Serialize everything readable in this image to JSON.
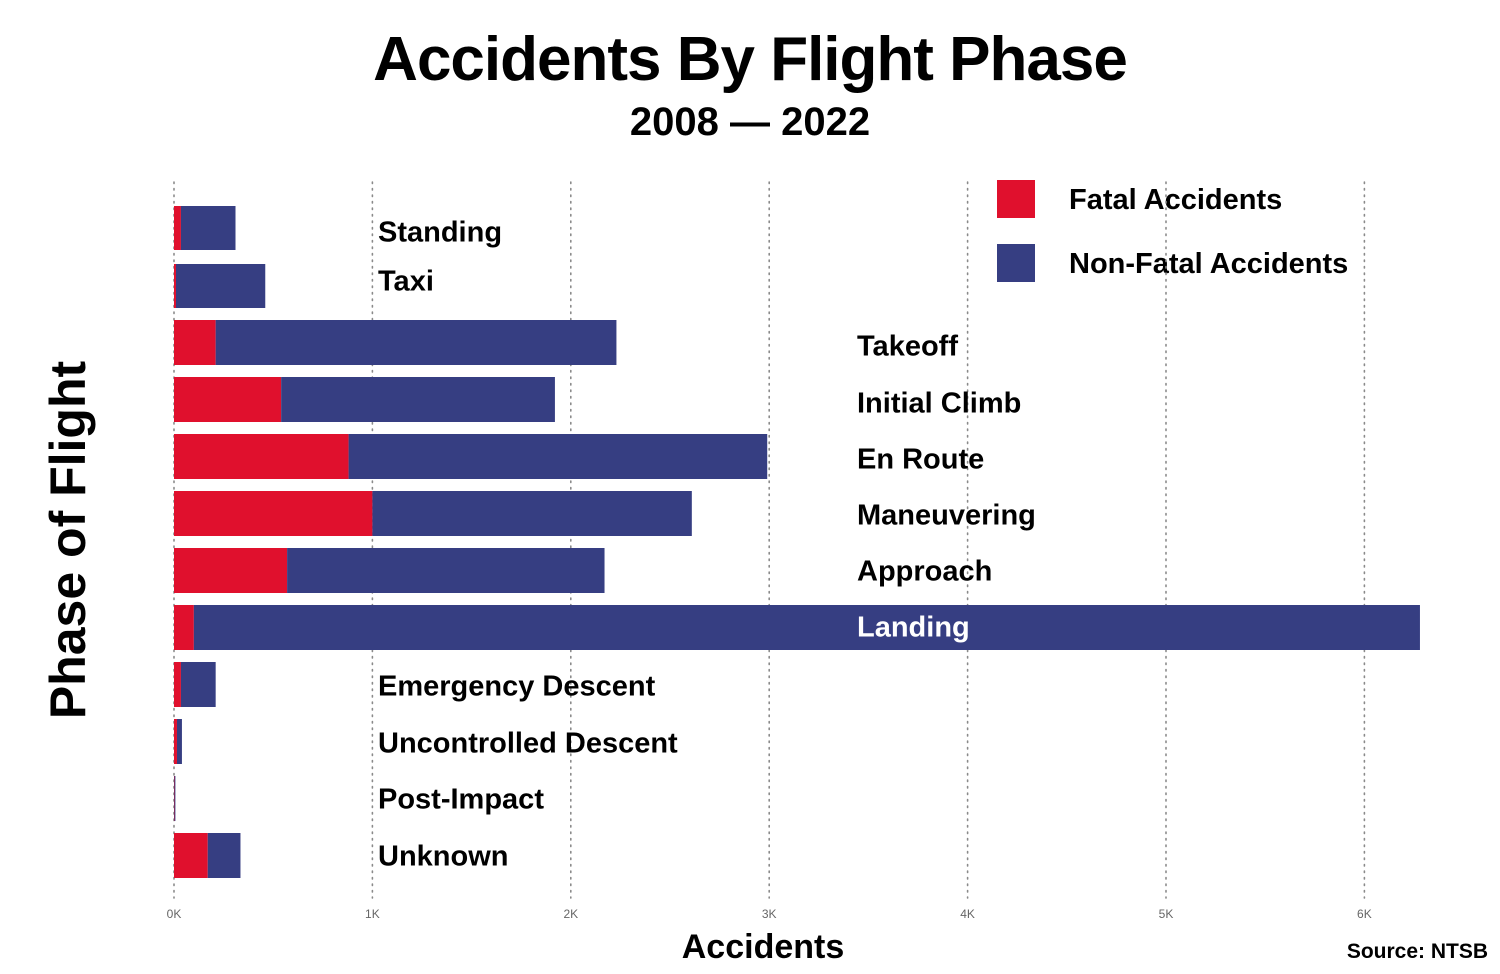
{
  "chart_data": {
    "type": "bar",
    "orientation": "horizontal",
    "stacked": true,
    "title": "Accidents By Flight Phase",
    "subtitle": "2008 — 2022",
    "xlabel": "Accidents",
    "ylabel": "Phase of Flight",
    "source": "Source: NTSB",
    "xlim": [
      0,
      6300
    ],
    "xticks": [
      0,
      1000,
      2000,
      3000,
      4000,
      5000,
      6000
    ],
    "xtick_labels": [
      "0K",
      "1K",
      "2K",
      "3K",
      "4K",
      "5K",
      "6K"
    ],
    "grid": "vertical dotted",
    "legend_position": "top-right",
    "categories": [
      "Standing",
      "Taxi",
      "Takeoff",
      "Initial Climb",
      "En Route",
      "Maneuvering",
      "Approach",
      "Landing",
      "Emergency Descent",
      "Uncontrolled Descent",
      "Post-Impact",
      "Unknown"
    ],
    "series": [
      {
        "name": "Fatal Accidents",
        "color": "#e0102d",
        "values": [
          35,
          10,
          210,
          540,
          880,
          1000,
          570,
          100,
          35,
          15,
          2,
          170
        ]
      },
      {
        "name": "Non-Fatal Accidents",
        "color": "#363e82",
        "values": [
          275,
          450,
          2020,
          1380,
          2110,
          1610,
          1600,
          6180,
          175,
          25,
          5,
          165
        ]
      }
    ]
  }
}
